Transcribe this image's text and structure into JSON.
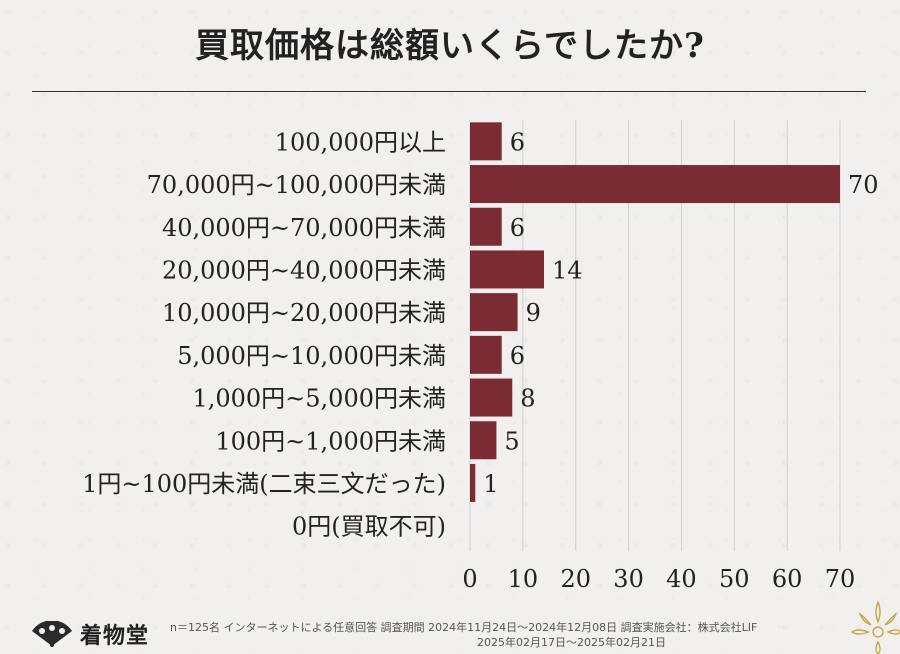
{
  "title": "買取価格は総額いくらでしたか?",
  "chart_data": {
    "type": "bar",
    "orientation": "horizontal",
    "categories": [
      "100,000円以上",
      "70,000円~100,000円未満",
      "40,000円~70,000円未満",
      "20,000円~40,000円未満",
      "10,000円~20,000円未満",
      "5,000円~10,000円未満",
      "1,000円~5,000円未満",
      "100円~1,000円未満",
      "1円~100円未満(二束三文だった)",
      "0円(買取不可)"
    ],
    "values": [
      6,
      70,
      6,
      14,
      9,
      6,
      8,
      5,
      1,
      0
    ],
    "data_labels": [
      "6",
      "70",
      "6",
      "14",
      "9",
      "6",
      "8",
      "5",
      "1",
      ""
    ],
    "xticks": [
      0,
      10,
      20,
      30,
      40,
      50,
      60,
      70
    ],
    "xlim": [
      0,
      70
    ],
    "grid": "vertical",
    "bar_color": "#7a2b33",
    "grid_color": "#cfcfcf"
  },
  "footer": {
    "logo_text": "着物堂",
    "logo_icon": "fan-icon",
    "note_line1": "n＝125名 インターネットによる任意回答 調査期間 2024年11月24日～2024年12月08日 調査実施会社：株式会社LIF",
    "note_line2": "2025年02月17日～2025年02月21日",
    "corner_icon": "flower-icon"
  }
}
